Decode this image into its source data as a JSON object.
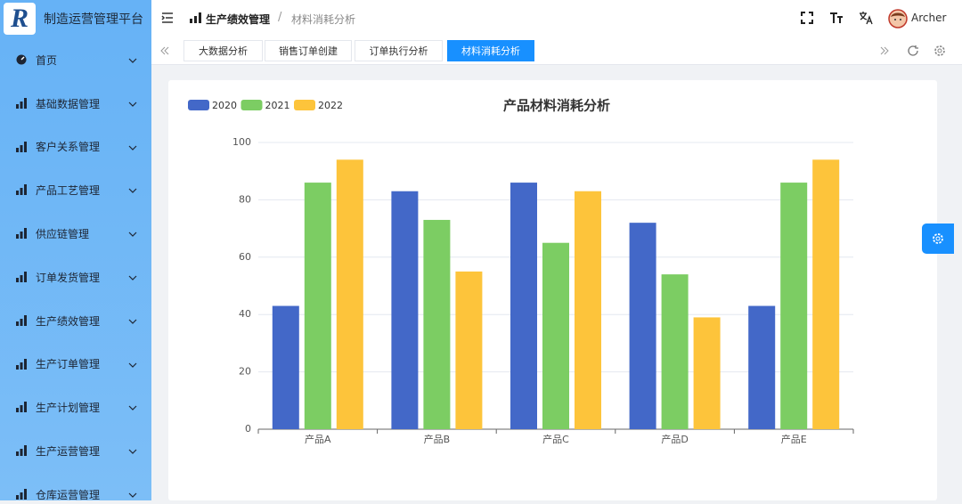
{
  "app": {
    "logo": "R",
    "title": "制造运营管理平台"
  },
  "sidebar": {
    "menu": [
      "首页",
      "基础数据管理",
      "客户关系管理",
      "产品工艺管理",
      "供应链管理",
      "订单发货管理",
      "生产绩效管理",
      "生产订单管理",
      "生产计划管理",
      "生产运营管理",
      "仓库运营管理"
    ]
  },
  "header": {
    "breadcrumb": [
      "生产绩效管理",
      "材料消耗分析"
    ],
    "breadcrumb_separator": "/",
    "user": "Archer"
  },
  "tabs": {
    "items": [
      "大数据分析",
      "销售订单创建",
      "订单执行分析",
      "材料消耗分析"
    ],
    "active": 3
  },
  "chart_data": {
    "type": "bar",
    "title": "产品材料消耗分析",
    "categories": [
      "产品A",
      "产品B",
      "产品C",
      "产品D",
      "产品E"
    ],
    "series": [
      {
        "name": "2020",
        "color": "#4368c8",
        "values": [
          43,
          83,
          86,
          72,
          43
        ]
      },
      {
        "name": "2021",
        "color": "#7ccd63",
        "values": [
          86,
          73,
          65,
          54,
          86
        ]
      },
      {
        "name": "2022",
        "color": "#fdc43b",
        "values": [
          94,
          55,
          83,
          39,
          94
        ]
      }
    ],
    "ylim": [
      0,
      100
    ],
    "yticks": [
      0,
      20,
      40,
      60,
      80,
      100
    ],
    "grid": true,
    "legend": "top-left"
  }
}
